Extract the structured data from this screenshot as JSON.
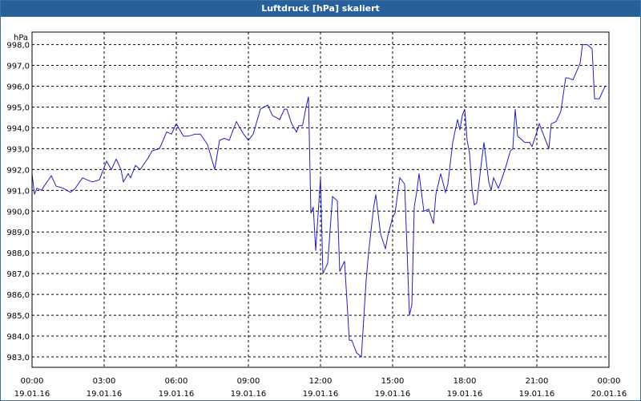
{
  "title": "Luftdruck [hPa] skaliert",
  "chart_data": {
    "type": "line",
    "title": "Luftdruck [hPa] skaliert",
    "ylabel": "hPa",
    "xlabel": "",
    "ylim": [
      982.5,
      998.6
    ],
    "xlim_hours": [
      0,
      24
    ],
    "grid": true,
    "y_ticks": [
      "983,0",
      "984,0",
      "985,0",
      "986,0",
      "987,0",
      "988,0",
      "989,0",
      "990,0",
      "991,0",
      "992,0",
      "993,0",
      "994,0",
      "995,0",
      "996,0",
      "997,0",
      "998,0"
    ],
    "x_ticks": [
      {
        "time": "00:00",
        "date": "19.01.16"
      },
      {
        "time": "03:00",
        "date": "19.01.16"
      },
      {
        "time": "06:00",
        "date": "19.01.16"
      },
      {
        "time": "09:00",
        "date": "19.01.16"
      },
      {
        "time": "12:00",
        "date": "19.01.16"
      },
      {
        "time": "15:00",
        "date": "19.01.16"
      },
      {
        "time": "18:00",
        "date": "19.01.16"
      },
      {
        "time": "21:00",
        "date": "19.01.16"
      },
      {
        "time": "00:00",
        "date": "20.01.16"
      }
    ],
    "colors": {
      "line": "#1f1fbf",
      "grid": "#000000",
      "title_bar": "#27609a"
    },
    "series": [
      {
        "x_hours": [
          0.0,
          0.1,
          0.2,
          0.4,
          0.5,
          0.8,
          1.0,
          1.3,
          1.6,
          1.8,
          2.1,
          2.5,
          2.8,
          3.1,
          3.3,
          3.5,
          3.7,
          3.8,
          4.0,
          4.1,
          4.3,
          4.5,
          4.8,
          5.0,
          5.3,
          5.6,
          5.8,
          6.0,
          6.3,
          6.5,
          6.8,
          7.0,
          7.3,
          7.4,
          7.6,
          7.8,
          8.0,
          8.2,
          8.5,
          8.8,
          9.0,
          9.2,
          9.5,
          9.8,
          10.0,
          10.3,
          10.5,
          10.6,
          10.8,
          11.0,
          11.1,
          11.25,
          11.4,
          11.5,
          11.6,
          11.7,
          11.8,
          12.0,
          12.1,
          12.3,
          12.5,
          12.7,
          12.8,
          13.0,
          13.2,
          13.3,
          13.5,
          13.7,
          13.9,
          14.0,
          14.2,
          14.3,
          14.5,
          14.7,
          14.8,
          15.0,
          15.1,
          15.3,
          15.5,
          15.7,
          15.8,
          15.9,
          16.0,
          16.1,
          16.3,
          16.5,
          16.7,
          16.8,
          17.0,
          17.2,
          17.3,
          17.5,
          17.7,
          17.8,
          17.9,
          18.0,
          18.1,
          18.2,
          18.3,
          18.4,
          18.5,
          18.7,
          18.8,
          19.0,
          19.1,
          19.2,
          19.4,
          19.5,
          19.7,
          19.9,
          20.0,
          20.1,
          20.2,
          20.4,
          20.5,
          20.7,
          20.8,
          21.0,
          21.1,
          21.3,
          21.5,
          21.6,
          21.8,
          22.0,
          22.2,
          22.3,
          22.5,
          22.8,
          22.9,
          23.1,
          23.3,
          23.4,
          23.6,
          23.8,
          23.85
        ],
        "values": [
          991.8,
          990.8,
          991.1,
          991.0,
          991.2,
          991.7,
          991.2,
          991.1,
          990.9,
          991.1,
          991.6,
          991.4,
          991.5,
          992.4,
          992.0,
          992.5,
          992.0,
          991.4,
          991.8,
          991.6,
          992.2,
          992.0,
          992.5,
          992.9,
          993.0,
          993.8,
          993.7,
          994.2,
          993.6,
          993.6,
          993.7,
          993.7,
          993.2,
          992.8,
          992.0,
          993.4,
          993.5,
          993.4,
          994.3,
          993.7,
          993.4,
          993.7,
          994.9,
          995.1,
          994.6,
          994.4,
          994.9,
          994.9,
          994.2,
          993.8,
          994.1,
          994.1,
          995.0,
          995.5,
          989.9,
          990.2,
          988.1,
          991.6,
          987.0,
          987.5,
          990.7,
          990.5,
          987.1,
          987.6,
          983.8,
          983.8,
          983.2,
          983.0,
          986.7,
          988.0,
          990.1,
          990.8,
          988.9,
          988.2,
          988.8,
          989.7,
          989.9,
          991.6,
          991.3,
          985.0,
          985.5,
          990.2,
          990.9,
          991.8,
          990.0,
          990.1,
          989.4,
          990.8,
          991.8,
          990.9,
          991.3,
          993.3,
          994.4,
          993.9,
          994.6,
          994.9,
          993.4,
          992.8,
          991.1,
          990.3,
          990.4,
          992.4,
          993.3,
          991.4,
          991.0,
          991.6,
          991.1,
          991.4,
          992.1,
          992.9,
          993.0,
          994.9,
          993.6,
          993.4,
          993.3,
          993.3,
          993.1,
          993.8,
          994.2,
          993.6,
          993.0,
          994.2,
          994.3,
          994.8,
          996.4,
          996.4,
          996.3,
          997.1,
          998.0,
          998.0,
          997.8,
          995.4,
          995.4,
          995.9,
          996.0
        ]
      }
    ]
  }
}
